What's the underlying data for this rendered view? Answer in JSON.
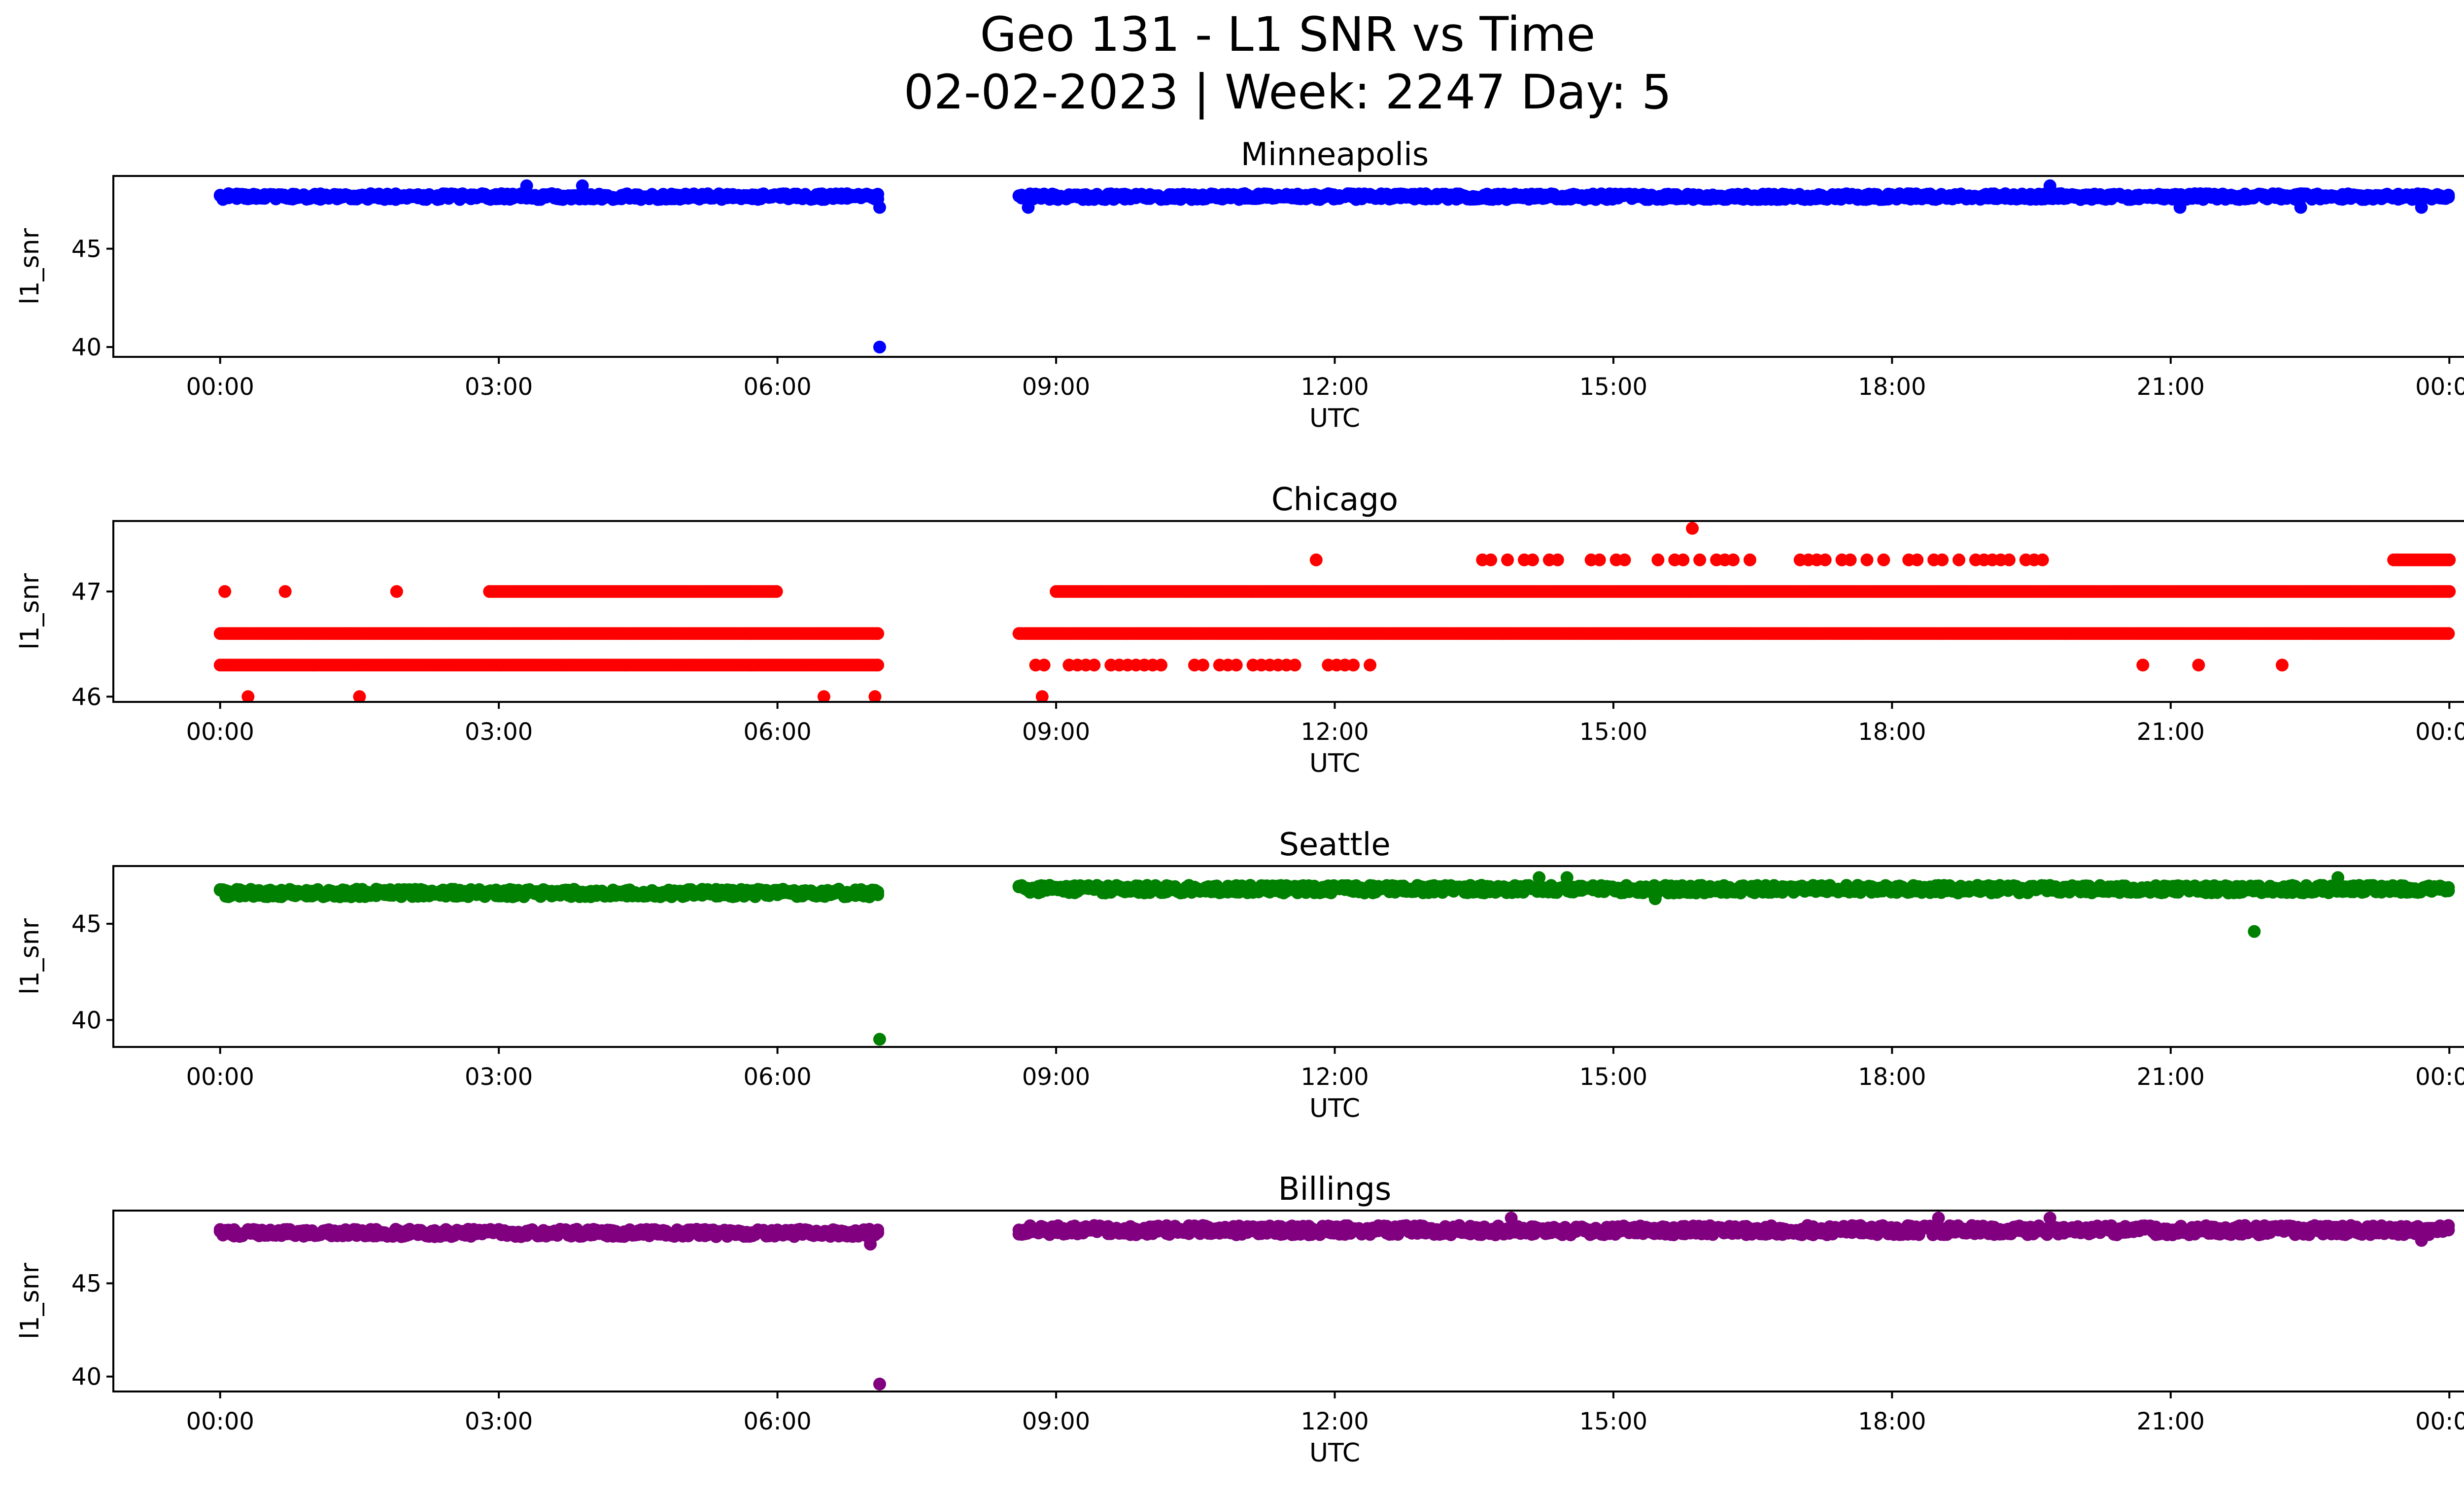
{
  "figure": {
    "title_line1": "Geo 131 - L1 SNR vs Time",
    "title_line2": "02-02-2023 | Week: 2247 Day: 5"
  },
  "chart_data": [
    {
      "type": "scatter",
      "title": "Minneapolis",
      "xlabel": "UTC",
      "ylabel": "l1_snr",
      "color": "#0000ff",
      "x_tick_labels": [
        "00:00",
        "03:00",
        "06:00",
        "09:00",
        "12:00",
        "15:00",
        "18:00",
        "21:00",
        "00:00"
      ],
      "x_range_hours": [
        -1.15,
        25.15
      ],
      "yticks": [
        40,
        45
      ],
      "ylim": [
        39.5,
        48.7
      ],
      "bands": [
        {
          "x": [
            0.0,
            7.1
          ],
          "values": [
            47.5,
            47.8
          ],
          "description": "dense"
        },
        {
          "x": [
            8.6,
            24.0
          ],
          "values": [
            47.5,
            47.8
          ],
          "description": "dense"
        }
      ],
      "points": [
        {
          "x": 3.3,
          "y": 48.2
        },
        {
          "x": 3.9,
          "y": 48.2
        },
        {
          "x": 7.1,
          "y": 47.1
        },
        {
          "x": 7.1,
          "y": 40.0
        },
        {
          "x": 8.7,
          "y": 47.1
        },
        {
          "x": 19.7,
          "y": 48.2
        },
        {
          "x": 21.1,
          "y": 47.1
        },
        {
          "x": 22.4,
          "y": 47.1
        },
        {
          "x": 23.7,
          "y": 47.1
        }
      ]
    },
    {
      "type": "scatter",
      "title": "Chicago",
      "xlabel": "UTC",
      "ylabel": "l1_snr",
      "color": "#ff0000",
      "x_tick_labels": [
        "00:00",
        "03:00",
        "06:00",
        "09:00",
        "12:00",
        "15:00",
        "18:00",
        "21:00",
        "00:00"
      ],
      "x_range_hours": [
        -1.15,
        25.15
      ],
      "yticks": [
        46,
        47
      ],
      "ylim": [
        45.95,
        47.67
      ],
      "bands": [
        {
          "x": [
            0.0,
            7.1
          ],
          "values": [
            46.6,
            46.3
          ],
          "description": "dense"
        },
        {
          "x": [
            2.9,
            6.0
          ],
          "values": [
            47.0
          ],
          "description": "dense"
        },
        {
          "x": [
            8.6,
            24.0
          ],
          "values": [
            46.6
          ],
          "description": "dense"
        },
        {
          "x": [
            9.0,
            24.0
          ],
          "values": [
            47.0
          ],
          "description": "dense"
        },
        {
          "x": [
            13.5,
            20.0
          ],
          "values": [
            47.3
          ],
          "description": "intermittent"
        },
        {
          "x": [
            23.4,
            24.0
          ],
          "values": [
            47.3
          ],
          "description": "dense"
        },
        {
          "x": [
            8.6,
            12.6
          ],
          "values": [
            46.3
          ],
          "description": "intermittent"
        }
      ],
      "points": [
        {
          "x": 0.05,
          "y": 47.0
        },
        {
          "x": 0.7,
          "y": 47.0
        },
        {
          "x": 1.9,
          "y": 47.0
        },
        {
          "x": 11.8,
          "y": 47.3
        },
        {
          "x": 15.85,
          "y": 47.6
        },
        {
          "x": 0.3,
          "y": 46.0
        },
        {
          "x": 1.5,
          "y": 46.0
        },
        {
          "x": 6.5,
          "y": 46.0
        },
        {
          "x": 7.05,
          "y": 46.0
        },
        {
          "x": 8.85,
          "y": 46.0
        },
        {
          "x": 20.7,
          "y": 46.3
        },
        {
          "x": 21.3,
          "y": 46.3
        },
        {
          "x": 22.2,
          "y": 46.3
        }
      ]
    },
    {
      "type": "scatter",
      "title": "Seattle",
      "xlabel": "UTC",
      "ylabel": "l1_snr",
      "color": "#008000",
      "x_tick_labels": [
        "00:00",
        "03:00",
        "06:00",
        "09:00",
        "12:00",
        "15:00",
        "18:00",
        "21:00",
        "00:00"
      ],
      "x_range_hours": [
        -1.15,
        25.15
      ],
      "yticks": [
        40,
        45
      ],
      "ylim": [
        38.6,
        48.0
      ],
      "bands": [
        {
          "x": [
            0.0,
            7.1
          ],
          "values": [
            46.4,
            46.8
          ],
          "description": "dense"
        },
        {
          "x": [
            8.6,
            24.0
          ],
          "values": [
            46.6,
            47.0
          ],
          "description": "dense"
        }
      ],
      "points": [
        {
          "x": 7.1,
          "y": 39.0
        },
        {
          "x": 21.9,
          "y": 44.6
        },
        {
          "x": 14.2,
          "y": 47.4
        },
        {
          "x": 14.5,
          "y": 47.4
        },
        {
          "x": 22.8,
          "y": 47.4
        },
        {
          "x": 15.45,
          "y": 46.3
        }
      ]
    },
    {
      "type": "scatter",
      "title": "Billings",
      "xlabel": "UTC",
      "ylabel": "l1_snr",
      "color": "#800080",
      "x_tick_labels": [
        "00:00",
        "03:00",
        "06:00",
        "09:00",
        "12:00",
        "15:00",
        "18:00",
        "21:00",
        "00:00"
      ],
      "x_range_hours": [
        -1.15,
        25.15
      ],
      "yticks": [
        40,
        45
      ],
      "ylim": [
        39.2,
        48.9
      ],
      "bands": [
        {
          "x": [
            0.0,
            7.1
          ],
          "values": [
            47.5,
            47.9
          ],
          "description": "dense"
        },
        {
          "x": [
            8.6,
            24.0
          ],
          "values": [
            47.6,
            48.1
          ],
          "description": "dense"
        }
      ],
      "points": [
        {
          "x": 7.1,
          "y": 39.6
        },
        {
          "x": 7.0,
          "y": 47.1
        },
        {
          "x": 13.9,
          "y": 48.5
        },
        {
          "x": 18.5,
          "y": 48.5
        },
        {
          "x": 19.7,
          "y": 48.5
        },
        {
          "x": 23.7,
          "y": 47.3
        }
      ]
    }
  ]
}
